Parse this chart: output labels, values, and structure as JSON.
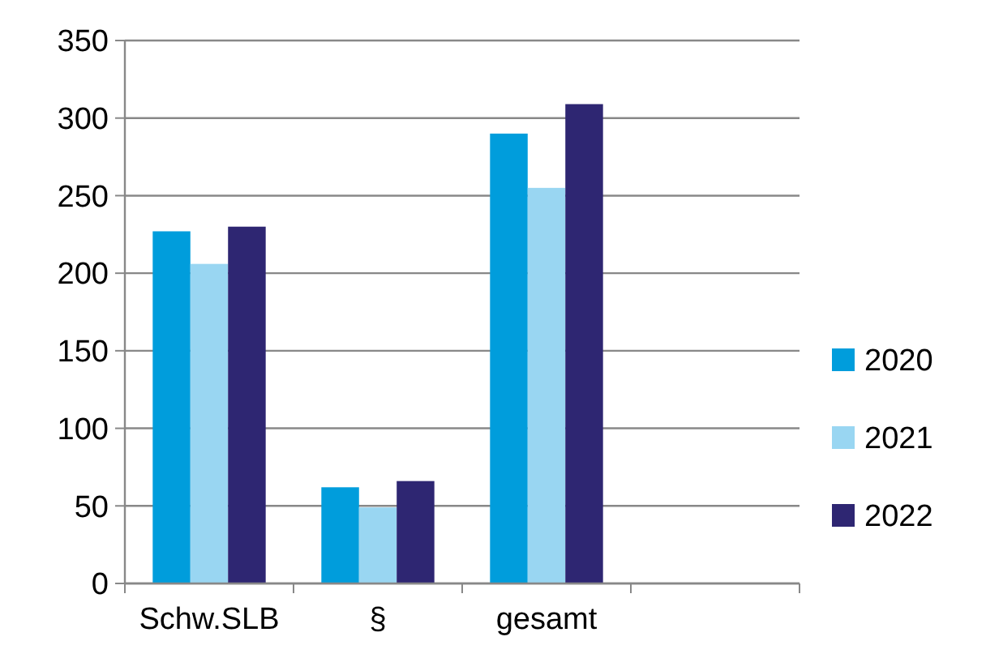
{
  "chart_data": {
    "type": "bar",
    "categories": [
      "Schw.SLB",
      "§",
      "gesamt",
      null
    ],
    "series": [
      {
        "name": "2020",
        "color": "#009ddc",
        "values": [
          227,
          62,
          290,
          null
        ]
      },
      {
        "name": "2021",
        "color": "#99d6f2",
        "values": [
          206,
          49,
          255,
          null
        ]
      },
      {
        "name": "2022",
        "color": "#2e2672",
        "values": [
          230,
          66,
          309,
          null
        ]
      }
    ],
    "ylim": [
      0,
      350
    ],
    "yticks": [
      0,
      50,
      100,
      150,
      200,
      250,
      300,
      350
    ],
    "grid": "y",
    "legend": "right"
  }
}
